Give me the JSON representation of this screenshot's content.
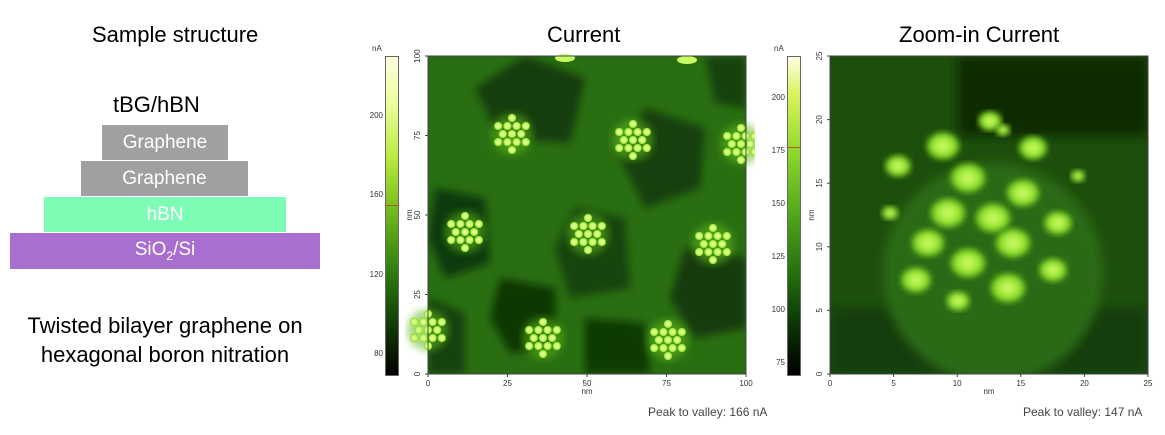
{
  "left_panel": {
    "title": "Sample structure",
    "stack_title": "tBG/hBN",
    "layers": [
      {
        "label": "Graphene",
        "color": "#a0a0a0"
      },
      {
        "label": "Graphene",
        "color": "#a0a0a0"
      },
      {
        "label": "hBN",
        "color": "#7cfcb4"
      },
      {
        "label": "SiO2/Si",
        "color": "#a86fd1"
      }
    ],
    "caption_line1": "Twisted bilayer graphene on",
    "caption_line2": "hexagonal boron nitration"
  },
  "current_map": {
    "title": "Current",
    "colorbar_unit": "nA",
    "colorbar_ticks": [
      "200",
      "160",
      "120",
      "80"
    ],
    "colorbar_marker_value": 155,
    "colorbar_range": [
      70,
      230
    ],
    "axis_unit": "nm",
    "x_ticks": [
      "0",
      "25",
      "50",
      "75",
      "100"
    ],
    "y_ticks": [
      "0",
      "25",
      "50",
      "75",
      "100"
    ],
    "peak_to_valley": "Peak to valley: 166 nA"
  },
  "zoom_map": {
    "title": "Zoom-in Current",
    "colorbar_unit": "nA",
    "colorbar_ticks": [
      "200",
      "175",
      "150",
      "125",
      "100",
      "75"
    ],
    "colorbar_marker_value": 177,
    "colorbar_range": [
      70,
      220
    ],
    "axis_unit": "nm",
    "x_ticks": [
      "0",
      "5",
      "10",
      "15",
      "20",
      "25"
    ],
    "y_ticks": [
      "0",
      "5",
      "10",
      "15",
      "20",
      "25"
    ],
    "peak_to_valley": "Peak to valley: 147 nA"
  },
  "colors": {
    "map_dark": "#0b2a06",
    "map_mid": "#2f7a12",
    "map_bright": "#c8ff66",
    "marker": "#b5542a"
  }
}
